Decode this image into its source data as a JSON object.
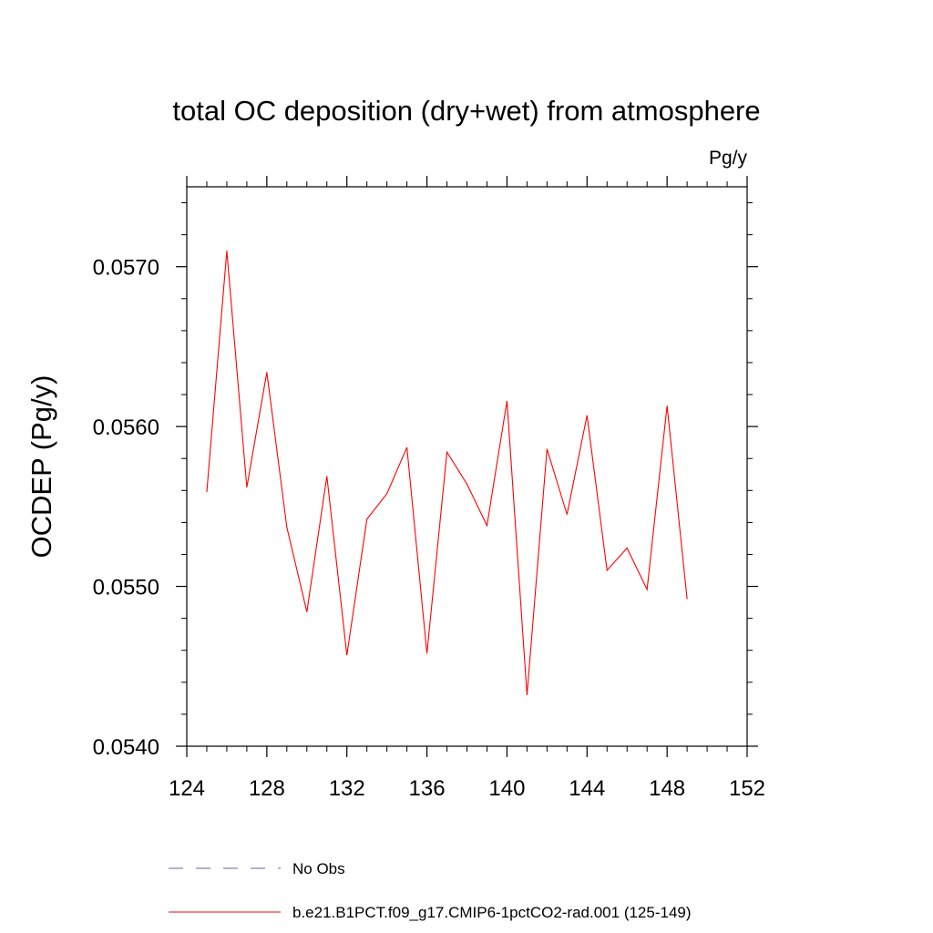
{
  "chart_data": {
    "type": "line",
    "title": "total OC deposition (dry+wet) from atmosphere",
    "units_label": "Pg/y",
    "xlabel": "",
    "ylabel": "OCDEP  (Pg/y)",
    "xlim": [
      124,
      152
    ],
    "ylim": [
      0.054,
      0.0575
    ],
    "x_ticks": [
      "124",
      "128",
      "132",
      "136",
      "140",
      "144",
      "148",
      "152"
    ],
    "y_ticks": [
      "0.0540",
      "0.0550",
      "0.0560",
      "0.0570"
    ],
    "grid": false,
    "legend_position": "bottom",
    "series": [
      {
        "name": "b.e21.B1PCT.f09_g17.CMIP6-1pctCO2-rad.001 (125-149)",
        "color": "#ff0000",
        "style": "solid",
        "x": [
          125,
          126,
          127,
          128,
          129,
          130,
          131,
          132,
          133,
          134,
          135,
          136,
          137,
          138,
          139,
          140,
          141,
          142,
          143,
          144,
          145,
          146,
          147,
          148,
          149
        ],
        "y": [
          0.05559,
          0.0571,
          0.05562,
          0.05634,
          0.05537,
          0.05484,
          0.05569,
          0.05457,
          0.05542,
          0.05558,
          0.05587,
          0.05458,
          0.05584,
          0.05564,
          0.05538,
          0.05616,
          0.05432,
          0.05586,
          0.05545,
          0.05607,
          0.0551,
          0.05524,
          0.05498,
          0.05613,
          0.05492
        ]
      }
    ],
    "legend": [
      {
        "label": "No Obs",
        "color": "#6666aa",
        "style": "dashed"
      },
      {
        "label": "b.e21.B1PCT.f09_g17.CMIP6-1pctCO2-rad.001 (125-149)",
        "color": "#ff0000",
        "style": "solid"
      }
    ]
  }
}
